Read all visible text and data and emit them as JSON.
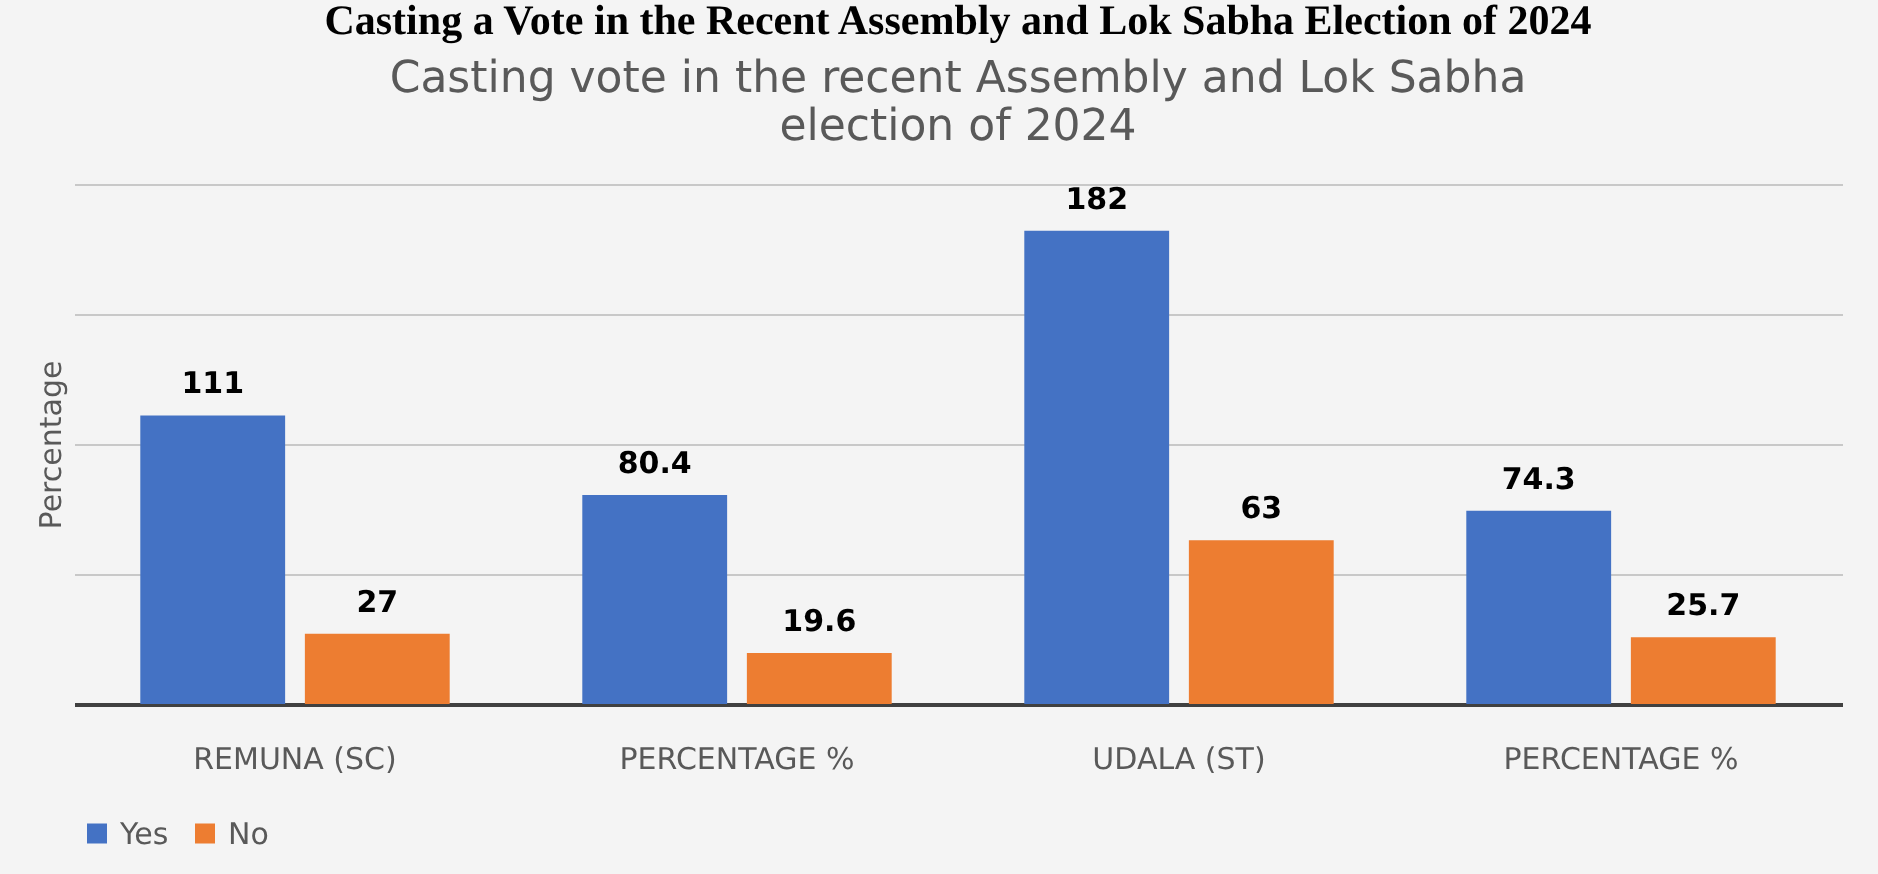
{
  "chart_data": {
    "type": "bar",
    "title": "Casting a Vote in the Recent Assembly and Lok Sabha Election of 2024",
    "subtitle": "Casting vote in the recent Assembly and Lok Sabha election of 2024",
    "ylabel": "Percentage",
    "categories": [
      "REMUNA (SC)",
      "PERCENTAGE %",
      "UDALA (ST)",
      "PERCENTAGE %"
    ],
    "series": [
      {
        "name": "Yes",
        "color": "#4472c4",
        "values": [
          111,
          80.4,
          182,
          74.3
        ]
      },
      {
        "name": "No",
        "color": "#ed7d31",
        "values": [
          27,
          19.6,
          63,
          25.7
        ]
      }
    ],
    "ylim": [
      0,
      200
    ],
    "yticks": [
      {
        "value": 50,
        "label": null
      },
      {
        "value": 100,
        "label": null
      },
      {
        "value": 150,
        "label": null
      },
      {
        "value": 200,
        "label": null
      }
    ],
    "grid": "y",
    "tick_labels": "x",
    "data_labels": true,
    "legend": "bottom"
  }
}
